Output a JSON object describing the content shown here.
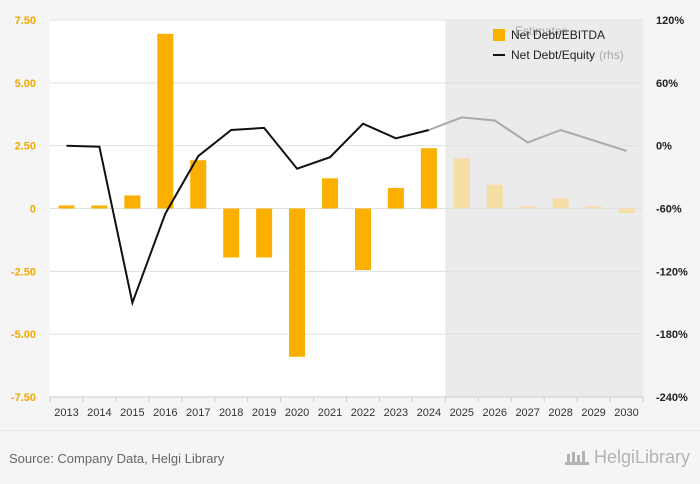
{
  "chart_data": {
    "type": "bar",
    "categories": [
      "2013",
      "2014",
      "2015",
      "2016",
      "2017",
      "2018",
      "2019",
      "2020",
      "2021",
      "2022",
      "2023",
      "2024",
      "2025",
      "2026",
      "2027",
      "2028",
      "2029",
      "2030"
    ],
    "estimates_from": "2025",
    "estimates_label": "Estimates",
    "series": [
      {
        "name": "Net Debt/EBITDA",
        "axis": "left",
        "kind": "bar",
        "values": [
          0.12,
          0.12,
          0.52,
          6.95,
          1.92,
          -1.95,
          -1.95,
          -5.9,
          1.2,
          -2.45,
          0.82,
          2.4,
          2.0,
          0.95,
          0.08,
          0.4,
          0.08,
          -0.18
        ]
      },
      {
        "name": "Net Debt/Equity",
        "note": "(rhs)",
        "axis": "right",
        "kind": "line",
        "values": [
          0,
          -1,
          -150,
          -65,
          -10,
          15,
          17,
          -22,
          -11,
          21,
          7,
          15,
          27,
          24,
          3,
          15,
          5,
          -5
        ]
      }
    ],
    "y_left": {
      "lim": [
        -7.5,
        7.5
      ],
      "ticks": [
        "7.50",
        "5.00",
        "2.50",
        "0",
        "-2.50",
        "-5.00",
        "-7.50"
      ],
      "tick_values": [
        7.5,
        5,
        2.5,
        0,
        -2.5,
        -5,
        -7.5
      ]
    },
    "y_right": {
      "lim": [
        -240,
        120
      ],
      "ticks": [
        "120%",
        "60%",
        "0%",
        "-60%",
        "-120%",
        "-180%",
        "-240%"
      ],
      "tick_values": [
        120,
        60,
        0,
        -60,
        -120,
        -180,
        -240
      ]
    },
    "colors": {
      "bar": "#fbb000",
      "bar_estimate": "#f5dea5",
      "line": "#111111",
      "line_estimate": "#aaaaaa",
      "estimate_region": "#ebebeb",
      "grid": "#e0e0e0",
      "left_tick_text": "#f0a800",
      "right_tick_text": "#222222"
    },
    "legend_position": "top-right",
    "grid": true
  },
  "footer": {
    "source": "Source: Company Data, Helgi Library",
    "brand": "HelgiLibrary"
  }
}
